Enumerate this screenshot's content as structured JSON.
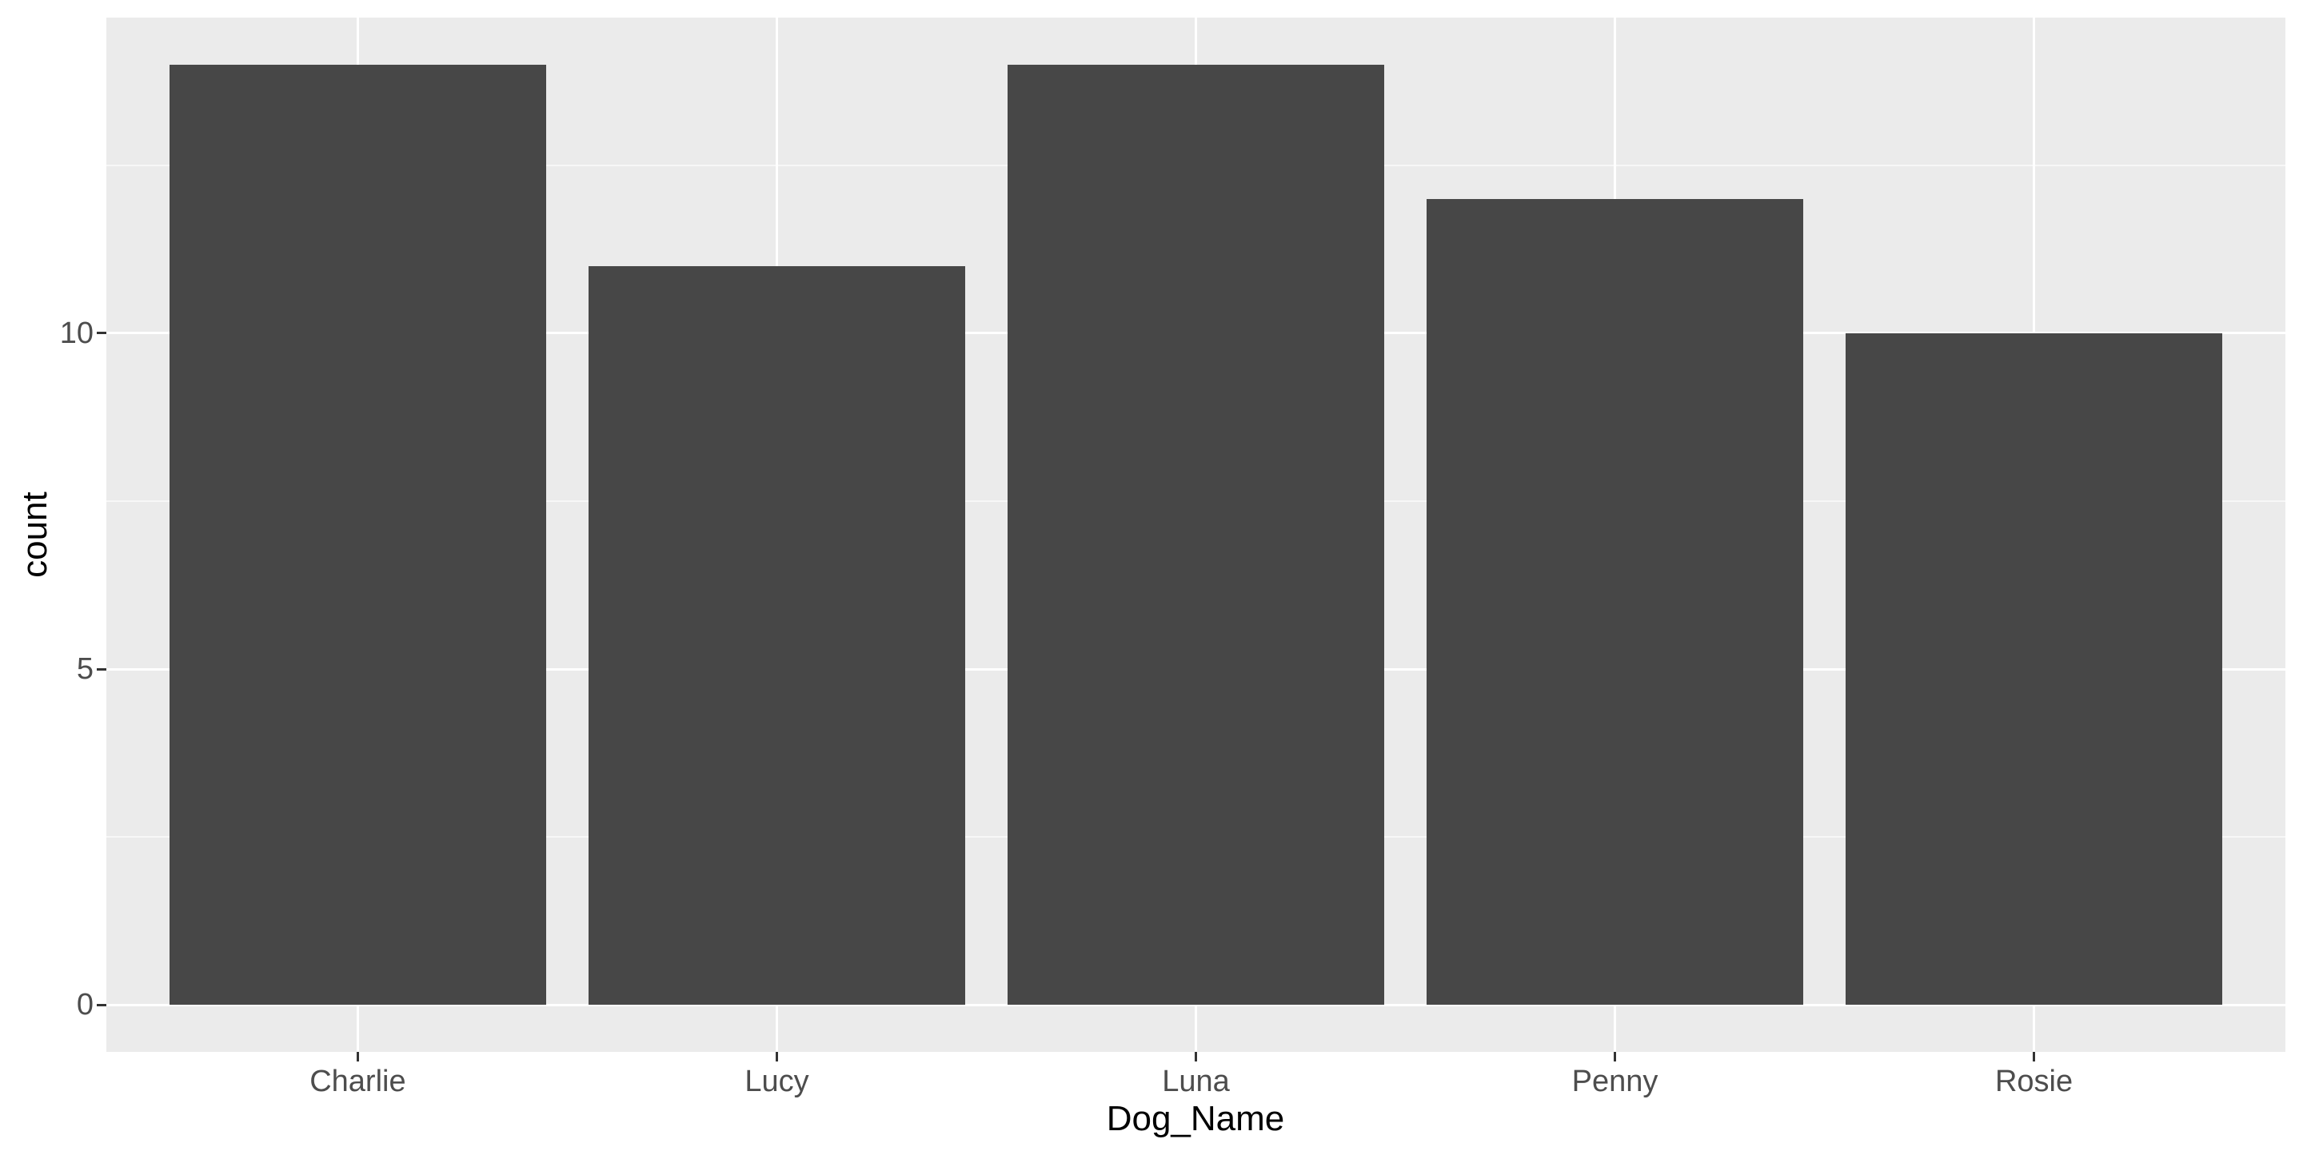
{
  "chart_data": {
    "type": "bar",
    "title": "",
    "xlabel": "Dog_Name",
    "ylabel": "count",
    "categories": [
      "Charlie",
      "Lucy",
      "Luna",
      "Penny",
      "Rosie"
    ],
    "values": [
      14,
      11,
      14,
      12,
      10
    ],
    "yticks": [
      0,
      5,
      10
    ],
    "ytick_labels": [
      "0",
      "5",
      "10"
    ],
    "minor_gridlines": [
      2.5,
      7.5,
      12.5
    ],
    "ylim": [
      -0.7,
      14.7
    ],
    "bar_width_fraction": 0.9,
    "discrete_expansion": 0.6,
    "grid": "on",
    "legend": "none",
    "theme": "ggplot2-grey",
    "colors": {
      "bar_fill": "#474747",
      "panel_background": "#EBEBEB",
      "grid_major": "#FFFFFF",
      "grid_minor": "#F7F7F7",
      "tick_mark": "#333333",
      "axis_text": "#4D4D4D",
      "axis_title": "#000000",
      "figure_background": "#FFFFFF"
    }
  }
}
